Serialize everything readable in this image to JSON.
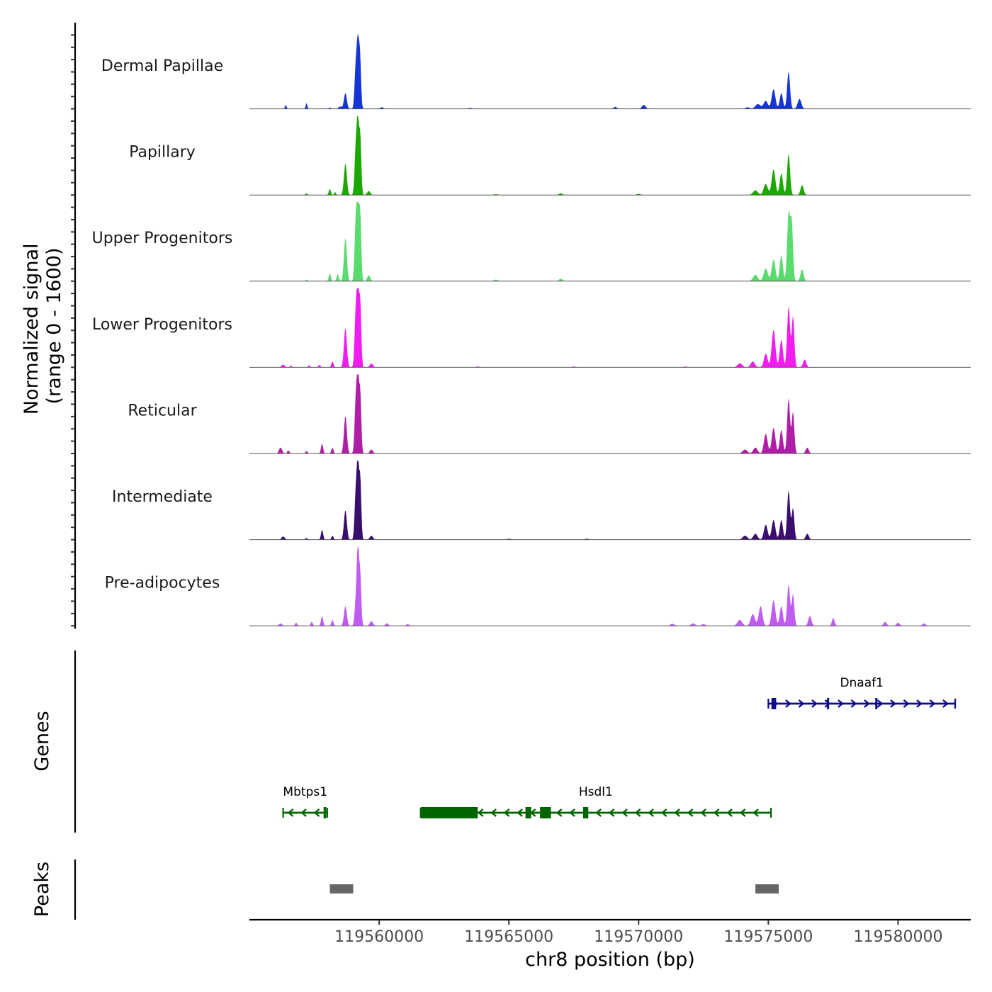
{
  "chart_data": {
    "type": "coverage",
    "chromosome": "chr8",
    "xlim": [
      119555000,
      119582800
    ],
    "x_ticks": [
      119560000,
      119565000,
      119570000,
      119575000,
      119580000
    ],
    "x_tick_labels": [
      "119560000",
      "119565000",
      "119570000",
      "119575000",
      "119580000"
    ],
    "xlabel": "chr8 position (bp)",
    "ylabel_line1": "Normalized signal",
    "ylabel_line2": "(range 0 - 1600)",
    "y_range": [
      0,
      1600
    ],
    "tracks": [
      {
        "name": "Dermal Papillae",
        "color": "#1535d4",
        "peaks": [
          [
            119556400,
            30,
            100
          ],
          [
            119557200,
            30,
            150
          ],
          [
            119558100,
            40,
            30
          ],
          [
            119558500,
            60,
            60
          ],
          [
            119558700,
            55,
            400
          ],
          [
            119559100,
            45,
            1100
          ],
          [
            119559180,
            40,
            1500
          ],
          [
            119559260,
            40,
            1350
          ],
          [
            119560100,
            60,
            40
          ],
          [
            119563500,
            80,
            20
          ],
          [
            119569100,
            60,
            50
          ],
          [
            119570200,
            70,
            100
          ],
          [
            119574200,
            80,
            40
          ],
          [
            119574600,
            100,
            120
          ],
          [
            119574900,
            80,
            200
          ],
          [
            119575200,
            70,
            500
          ],
          [
            119575500,
            60,
            400
          ],
          [
            119575780,
            55,
            950
          ],
          [
            119576200,
            70,
            250
          ]
        ]
      },
      {
        "name": "Papillary",
        "color": "#1ba800",
        "peaks": [
          [
            119557200,
            40,
            40
          ],
          [
            119558100,
            40,
            150
          ],
          [
            119558300,
            30,
            80
          ],
          [
            119558700,
            55,
            800
          ],
          [
            119559100,
            45,
            1200
          ],
          [
            119559180,
            40,
            1750
          ],
          [
            119559270,
            40,
            1500
          ],
          [
            119559600,
            60,
            100
          ],
          [
            119564500,
            80,
            20
          ],
          [
            119567000,
            70,
            40
          ],
          [
            119570000,
            70,
            30
          ],
          [
            119574500,
            90,
            120
          ],
          [
            119574900,
            80,
            280
          ],
          [
            119575200,
            70,
            650
          ],
          [
            119575500,
            60,
            550
          ],
          [
            119575780,
            55,
            1050
          ],
          [
            119576300,
            60,
            250
          ]
        ]
      },
      {
        "name": "Upper Progenitors",
        "color": "#5adb6e",
        "peaks": [
          [
            119557200,
            40,
            40
          ],
          [
            119558100,
            40,
            200
          ],
          [
            119558400,
            40,
            180
          ],
          [
            119558700,
            55,
            1100
          ],
          [
            119559100,
            45,
            1500
          ],
          [
            119559180,
            40,
            2000
          ],
          [
            119559270,
            40,
            1700
          ],
          [
            119559600,
            60,
            150
          ],
          [
            119564500,
            80,
            40
          ],
          [
            119567000,
            70,
            60
          ],
          [
            119574500,
            90,
            160
          ],
          [
            119574900,
            80,
            320
          ],
          [
            119575200,
            70,
            550
          ],
          [
            119575500,
            60,
            650
          ],
          [
            119575780,
            55,
            1700
          ],
          [
            119575900,
            50,
            1450
          ],
          [
            119576300,
            60,
            300
          ]
        ]
      },
      {
        "name": "Lower Progenitors",
        "color": "#f21bf0",
        "peaks": [
          [
            119556300,
            60,
            70
          ],
          [
            119556600,
            40,
            40
          ],
          [
            119557300,
            40,
            50
          ],
          [
            119557700,
            40,
            60
          ],
          [
            119558200,
            40,
            150
          ],
          [
            119558700,
            55,
            1000
          ],
          [
            119559100,
            45,
            1400
          ],
          [
            119559180,
            40,
            1950
          ],
          [
            119559270,
            40,
            1650
          ],
          [
            119559700,
            60,
            100
          ],
          [
            119563800,
            80,
            20
          ],
          [
            119567500,
            80,
            20
          ],
          [
            119571800,
            80,
            20
          ],
          [
            119573900,
            90,
            100
          ],
          [
            119574400,
            80,
            150
          ],
          [
            119574900,
            70,
            350
          ],
          [
            119575200,
            70,
            950
          ],
          [
            119575500,
            60,
            700
          ],
          [
            119575780,
            55,
            1550
          ],
          [
            119575950,
            50,
            1300
          ],
          [
            119576400,
            60,
            200
          ]
        ]
      },
      {
        "name": "Reticular",
        "color": "#b01ea6",
        "peaks": [
          [
            119556200,
            60,
            150
          ],
          [
            119556500,
            40,
            80
          ],
          [
            119557200,
            40,
            60
          ],
          [
            119557800,
            40,
            250
          ],
          [
            119558200,
            40,
            150
          ],
          [
            119558700,
            55,
            950
          ],
          [
            119559100,
            45,
            1350
          ],
          [
            119559180,
            40,
            1850
          ],
          [
            119559270,
            40,
            1550
          ],
          [
            119559700,
            60,
            100
          ],
          [
            119574100,
            90,
            100
          ],
          [
            119574500,
            80,
            150
          ],
          [
            119574900,
            70,
            500
          ],
          [
            119575200,
            70,
            650
          ],
          [
            119575500,
            60,
            600
          ],
          [
            119575780,
            55,
            1400
          ],
          [
            119575950,
            50,
            1050
          ],
          [
            119576500,
            60,
            150
          ]
        ]
      },
      {
        "name": "Intermediate",
        "color": "#3a0e6c",
        "peaks": [
          [
            119556300,
            60,
            80
          ],
          [
            119557200,
            40,
            40
          ],
          [
            119557800,
            40,
            250
          ],
          [
            119558200,
            40,
            100
          ],
          [
            119558700,
            55,
            750
          ],
          [
            119559100,
            45,
            1200
          ],
          [
            119559180,
            40,
            1800
          ],
          [
            119559270,
            40,
            1550
          ],
          [
            119559700,
            60,
            100
          ],
          [
            119565000,
            80,
            20
          ],
          [
            119568000,
            80,
            20
          ],
          [
            119574100,
            90,
            100
          ],
          [
            119574500,
            80,
            150
          ],
          [
            119574900,
            70,
            380
          ],
          [
            119575200,
            70,
            500
          ],
          [
            119575500,
            60,
            500
          ],
          [
            119575780,
            55,
            1250
          ],
          [
            119575950,
            50,
            800
          ],
          [
            119576500,
            60,
            150
          ]
        ]
      },
      {
        "name": "Pre-adipocytes",
        "color": "#c05cf2",
        "peaks": [
          [
            119556200,
            60,
            60
          ],
          [
            119556800,
            40,
            80
          ],
          [
            119557400,
            40,
            100
          ],
          [
            119557800,
            40,
            250
          ],
          [
            119558200,
            40,
            150
          ],
          [
            119558700,
            55,
            500
          ],
          [
            119559100,
            45,
            600
          ],
          [
            119559180,
            40,
            2000
          ],
          [
            119559270,
            40,
            1300
          ],
          [
            119559700,
            60,
            120
          ],
          [
            119560300,
            60,
            60
          ],
          [
            119561100,
            60,
            40
          ],
          [
            119571300,
            80,
            50
          ],
          [
            119572100,
            80,
            60
          ],
          [
            119572500,
            80,
            40
          ],
          [
            119573900,
            90,
            150
          ],
          [
            119574400,
            80,
            300
          ],
          [
            119574700,
            70,
            500
          ],
          [
            119575200,
            70,
            650
          ],
          [
            119575500,
            60,
            500
          ],
          [
            119575780,
            55,
            1050
          ],
          [
            119575950,
            50,
            800
          ],
          [
            119576600,
            60,
            250
          ],
          [
            119577500,
            50,
            200
          ],
          [
            119579500,
            60,
            100
          ],
          [
            119580000,
            60,
            80
          ],
          [
            119581000,
            60,
            60
          ]
        ]
      }
    ],
    "genes": [
      {
        "name": "Dnaaf1",
        "strand": "+",
        "color": "#0c0c8c",
        "start": 119575000,
        "end": 119582200,
        "exons": [
          [
            119575120,
            119575300
          ],
          [
            119577260,
            119577340
          ],
          [
            119579120,
            119579200
          ]
        ]
      },
      {
        "name": "Mbtps1",
        "strand": "-",
        "color": "#006400",
        "start": 119556300,
        "end": 119558000,
        "exons": [
          [
            119557860,
            119557960
          ]
        ]
      },
      {
        "name": "Hsdl1",
        "strand": "-",
        "color": "#006400",
        "start": 119561600,
        "end": 119575100,
        "exons": [
          [
            119561600,
            119563800
          ],
          [
            119565640,
            119565860
          ],
          [
            119566200,
            119566620
          ],
          [
            119567860,
            119568060
          ]
        ]
      }
    ],
    "peak_regions": [
      {
        "start": 119558100,
        "end": 119559000
      },
      {
        "start": 119574500,
        "end": 119575400
      }
    ],
    "panel_labels": {
      "genes": "Genes",
      "peaks": "Peaks"
    }
  }
}
